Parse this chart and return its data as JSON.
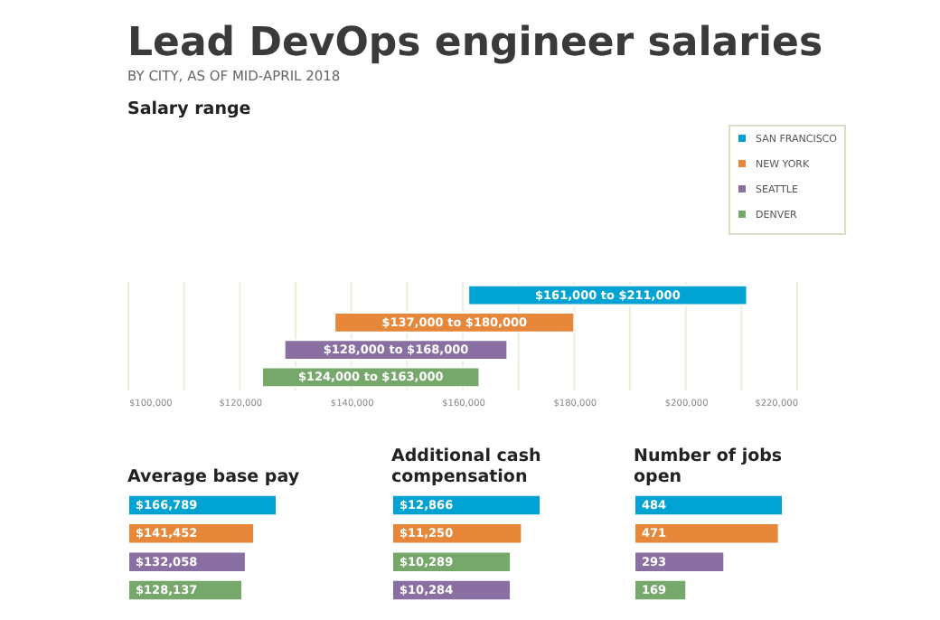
{
  "chart_data": [
    {
      "type": "bar",
      "orientation": "horizontal",
      "title": "Lead DevOps engineer salaries",
      "subtitle": "BY CITY, AS OF MID-APRIL 2018",
      "categories": [
        null,
        null,
        null,
        null
      ],
      "series": [
        {
          "name": "SAN FRANCISCO",
          "color": "#00a3d3",
          "base": [
            161000,
            null,
            null,
            null
          ],
          "values": [
            50000,
            null,
            null,
            null
          ]
        },
        {
          "name": "NEW YORK",
          "color": "#e6873a",
          "base": [
            null,
            137000,
            null,
            null
          ],
          "values": [
            null,
            43000,
            null,
            null
          ]
        },
        {
          "name": "SEATTLE",
          "color": "#8a6fa3",
          "base": [
            null,
            null,
            128000,
            null
          ],
          "values": [
            null,
            null,
            40000,
            null
          ]
        },
        {
          "name": "DENVER",
          "color": "#77a86b",
          "base": [
            null,
            null,
            null,
            124000
          ],
          "values": [
            null,
            null,
            null,
            39000
          ]
        }
      ],
      "annotations": [
        "Salary range",
        {
          "text": "$161,000 to $211,000",
          "x": 186000
        },
        {
          "text": "$137,000 to $180,000",
          "x": 158500
        },
        {
          "text": "$128,000 to $168,000",
          "x": 148000
        },
        {
          "text": "$124,000 to $163,000",
          "x": 143500
        }
      ],
      "xlim": [
        100000,
        220000
      ],
      "xticks": [
        {
          "value": 100000,
          "label": "$100,000"
        },
        {
          "value": 110000,
          "label": null
        },
        {
          "value": 120000,
          "label": "$120,000"
        },
        {
          "value": 130000,
          "label": null
        },
        {
          "value": 140000,
          "label": "$140,000"
        },
        {
          "value": 150000,
          "label": null
        },
        {
          "value": 160000,
          "label": "$160,000"
        },
        {
          "value": 170000,
          "label": null
        },
        {
          "value": 180000,
          "label": "$180,000"
        },
        {
          "value": 190000,
          "label": null
        },
        {
          "value": 200000,
          "label": "$200,000"
        },
        {
          "value": 210000,
          "label": null
        },
        {
          "value": 220000,
          "label": "$220,000"
        }
      ],
      "grid": "x",
      "legend": "top right",
      "tick_labels": "x"
    },
    {
      "type": "bar",
      "orientation": "horizontal",
      "title": "Average base pay",
      "categories": [
        null,
        null,
        null,
        null
      ],
      "values": [
        166789,
        141452,
        132058,
        128137
      ],
      "colors": [
        "#00a3d3",
        "#e6873a",
        "#8a6fa3",
        "#77a86b"
      ],
      "value_labels": [
        "$166,789",
        "$141,452",
        "$132,058",
        "$128,137"
      ],
      "tick_labels": false
    },
    {
      "type": "bar",
      "orientation": "horizontal",
      "title": "Additional cash compensation",
      "categories": [
        null,
        null,
        null,
        null
      ],
      "values": [
        12866,
        11250,
        10289,
        10284
      ],
      "colors": [
        "#00a3d3",
        "#e6873a",
        "#77a86b",
        "#8a6fa3"
      ],
      "value_labels": [
        "$12,866",
        "$11,250",
        "$10,289",
        "$10,284"
      ],
      "tick_labels": false
    },
    {
      "type": "bar",
      "orientation": "horizontal",
      "title": "Number of jobs open",
      "categories": [
        null,
        null,
        null,
        null
      ],
      "values": [
        484,
        471,
        293,
        169
      ],
      "colors": [
        "#00a3d3",
        "#e6873a",
        "#8a6fa3",
        "#77a86b"
      ],
      "value_labels": [
        "484",
        "471",
        "293",
        "169"
      ],
      "tick_labels": false
    }
  ]
}
